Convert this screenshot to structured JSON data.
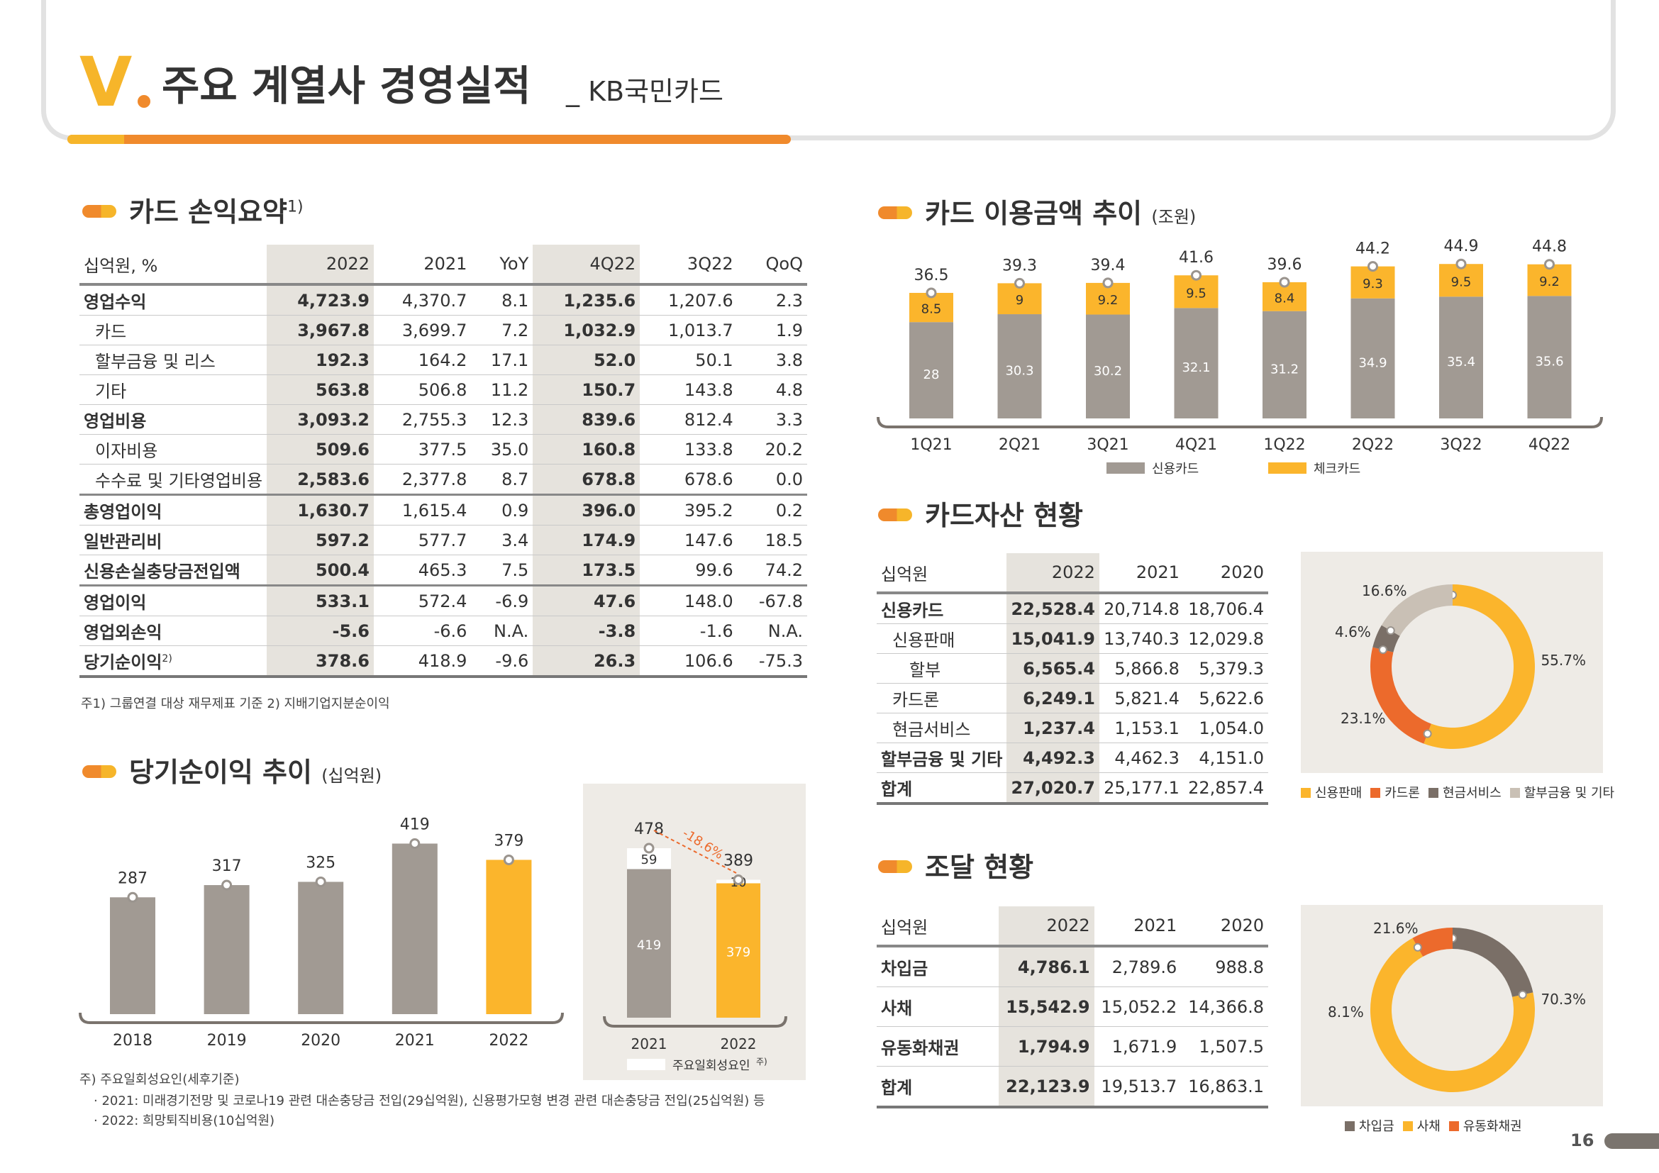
{
  "header": {
    "roman": "V",
    "title": "주요 계열사 경영실적",
    "subtitle": "_ KB국민카드",
    "page_number": "16"
  },
  "sections": {
    "card_pl": {
      "title": "카드 손익요약",
      "sup": "1)"
    },
    "card_usage": {
      "title": "카드 이용금액 추이",
      "unit": "(조원)"
    },
    "card_assets": {
      "title": "카드자산 현황"
    },
    "net_income": {
      "title": "당기순이익 추이",
      "unit": "(십억원)"
    },
    "funding": {
      "title": "조달 현황"
    }
  },
  "pl_table": {
    "headers": [
      "십억원, %",
      "2022",
      "2021",
      "YoY",
      "4Q22",
      "3Q22",
      "QoQ"
    ],
    "rows": [
      {
        "label": "영업수익",
        "sub": false,
        "v": [
          "4,723.9",
          "4,370.7",
          "8.1",
          "1,235.6",
          "1,207.6",
          "2.3"
        ]
      },
      {
        "label": "카드",
        "sub": true,
        "v": [
          "3,967.8",
          "3,699.7",
          "7.2",
          "1,032.9",
          "1,013.7",
          "1.9"
        ]
      },
      {
        "label": "할부금융 및 리스",
        "sub": true,
        "v": [
          "192.3",
          "164.2",
          "17.1",
          "52.0",
          "50.1",
          "3.8"
        ]
      },
      {
        "label": "기타",
        "sub": true,
        "v": [
          "563.8",
          "506.8",
          "11.2",
          "150.7",
          "143.8",
          "4.8"
        ]
      },
      {
        "label": "영업비용",
        "sub": false,
        "v": [
          "3,093.2",
          "2,755.3",
          "12.3",
          "839.6",
          "812.4",
          "3.3"
        ]
      },
      {
        "label": "이자비용",
        "sub": true,
        "v": [
          "509.6",
          "377.5",
          "35.0",
          "160.8",
          "133.8",
          "20.2"
        ]
      },
      {
        "label": "수수료 및 기타영업비용",
        "sub": true,
        "v": [
          "2,583.6",
          "2,377.8",
          "8.7",
          "678.8",
          "678.6",
          "0.0"
        ]
      },
      {
        "label": "총영업이익",
        "sub": false,
        "v": [
          "1,630.7",
          "1,615.4",
          "0.9",
          "396.0",
          "395.2",
          "0.2"
        ]
      },
      {
        "label": "일반관리비",
        "sub": false,
        "v": [
          "597.2",
          "577.7",
          "3.4",
          "174.9",
          "147.6",
          "18.5"
        ]
      },
      {
        "label": "신용손실충당금전입액",
        "sub": false,
        "v": [
          "500.4",
          "465.3",
          "7.5",
          "173.5",
          "99.6",
          "74.2"
        ]
      },
      {
        "label": "영업이익",
        "sub": false,
        "v": [
          "533.1",
          "572.4",
          "-6.9",
          "47.6",
          "148.0",
          "-67.8"
        ]
      },
      {
        "label": "영업외손익",
        "sub": false,
        "v": [
          "-5.6",
          "-6.6",
          "N.A.",
          "-3.8",
          "-1.6",
          "N.A."
        ]
      },
      {
        "label": "당기순이익",
        "sup": "2)",
        "sub": false,
        "v": [
          "378.6",
          "418.9",
          "-9.6",
          "26.3",
          "106.6",
          "-75.3"
        ]
      }
    ],
    "footnote": "주1) 그룹연결 대상 재무제표 기준  2) 지배기업지분순이익"
  },
  "colors": {
    "gray": "#a19a93",
    "yellow": "#fbb52c",
    "orange": "#ec6a2c",
    "light": "#c9c0b5",
    "dark": "#7a6f67",
    "panel": "#eeebe6"
  },
  "chart_data": [
    {
      "type": "bar",
      "id": "card_usage",
      "stacked": true,
      "categories": [
        "1Q21",
        "2Q21",
        "3Q21",
        "4Q21",
        "1Q22",
        "2Q22",
        "3Q22",
        "4Q22"
      ],
      "series": [
        {
          "name": "신용카드",
          "values": [
            28.0,
            30.3,
            30.2,
            32.1,
            31.2,
            34.9,
            35.4,
            35.6
          ]
        },
        {
          "name": "체크카드",
          "values": [
            8.5,
            9.0,
            9.2,
            9.5,
            8.4,
            9.3,
            9.5,
            9.2
          ]
        }
      ],
      "totals": [
        36.5,
        39.3,
        39.4,
        41.6,
        39.6,
        44.2,
        44.9,
        44.8
      ],
      "legend": "bottom"
    },
    {
      "type": "bar",
      "id": "net_income",
      "categories": [
        "2018",
        "2019",
        "2020",
        "2021",
        "2022"
      ],
      "values": [
        287,
        317,
        325,
        419,
        379
      ]
    },
    {
      "type": "bar",
      "id": "net_income_oneoff",
      "stacked": true,
      "categories": [
        "2021",
        "2022"
      ],
      "series": [
        {
          "name": "base",
          "values": [
            419,
            379
          ]
        },
        {
          "name": "주요일회성요인",
          "sup": "주)",
          "values": [
            59,
            10
          ]
        }
      ],
      "totals": [
        478,
        389
      ],
      "change_label": "-18.6%",
      "legend": "bottom"
    },
    {
      "type": "pie",
      "id": "card_assets_mix",
      "labels": [
        "신용판매",
        "카드론",
        "현금서비스",
        "할부금융 및 기타"
      ],
      "values": [
        55.7,
        23.1,
        4.6,
        16.6
      ],
      "value_labels": [
        "55.7%",
        "23.1%",
        "4.6%",
        "16.6%"
      ],
      "legend": "bottom"
    },
    {
      "type": "pie",
      "id": "funding_mix",
      "labels": [
        "차입금",
        "사채",
        "유동화채권"
      ],
      "values": [
        21.6,
        70.3,
        8.1
      ],
      "value_labels": [
        "21.6%",
        "70.3%",
        "8.1%"
      ],
      "legend": "bottom"
    }
  ],
  "net_income_notes": {
    "title": "주) 주요일회성요인(세후기준)",
    "line1": "· 2021: 미래경기전망 및 코로나19 관련 대손충당금 전입(29십억원), 신용평가모형 변경 관련 대손충당금 전입(25십억원) 등",
    "line2": "· 2022: 희망퇴직비용(10십억원)"
  },
  "assets_table": {
    "headers": [
      "십억원",
      "2022",
      "2021",
      "2020"
    ],
    "rows": [
      {
        "label": "신용카드",
        "sub": false,
        "v": [
          "22,528.4",
          "20,714.8",
          "18,706.4"
        ]
      },
      {
        "label": "신용판매",
        "sub": true,
        "v": [
          "15,041.9",
          "13,740.3",
          "12,029.8"
        ]
      },
      {
        "label": "할부",
        "sub": true,
        "indent": 2,
        "v": [
          "6,565.4",
          "5,866.8",
          "5,379.3"
        ]
      },
      {
        "label": "카드론",
        "sub": true,
        "v": [
          "6,249.1",
          "5,821.4",
          "5,622.6"
        ]
      },
      {
        "label": "현금서비스",
        "sub": true,
        "v": [
          "1,237.4",
          "1,153.1",
          "1,054.0"
        ]
      },
      {
        "label": "할부금융 및 기타",
        "sub": false,
        "v": [
          "4,492.3",
          "4,462.3",
          "4,151.0"
        ]
      },
      {
        "label": "합계",
        "sub": false,
        "v": [
          "27,020.7",
          "25,177.1",
          "22,857.4"
        ]
      }
    ]
  },
  "funding_table": {
    "headers": [
      "십억원",
      "2022",
      "2021",
      "2020"
    ],
    "rows": [
      {
        "label": "차입금",
        "v": [
          "4,786.1",
          "2,789.6",
          "988.8"
        ]
      },
      {
        "label": "사채",
        "v": [
          "15,542.9",
          "15,052.2",
          "14,366.8"
        ]
      },
      {
        "label": "유동화채권",
        "v": [
          "1,794.9",
          "1,671.9",
          "1,507.5"
        ]
      },
      {
        "label": "합계",
        "v": [
          "22,123.9",
          "19,513.7",
          "16,863.1"
        ]
      }
    ]
  }
}
